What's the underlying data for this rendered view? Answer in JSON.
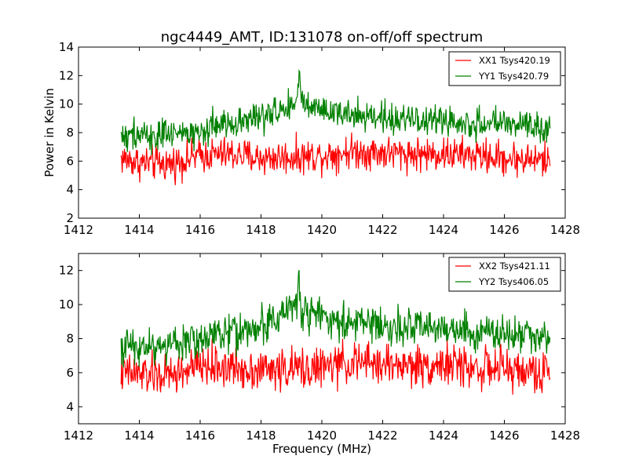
{
  "chart_data": [
    {
      "type": "line",
      "title": "ngc4449_AMT, ID:131078 on-off/off spectrum",
      "xlabel": "",
      "ylabel": "Power in Kelvin",
      "xlim": [
        1412,
        1428
      ],
      "ylim": [
        2,
        14
      ],
      "xticks": [
        1412,
        1414,
        1416,
        1418,
        1420,
        1422,
        1424,
        1426,
        1428
      ],
      "yticks": [
        2,
        4,
        6,
        8,
        10,
        12,
        14
      ],
      "grid": false,
      "legend_position": "top-right",
      "x_range": [
        1413.4,
        1427.5
      ],
      "series": [
        {
          "name": "XX1 Tsys420.19",
          "color": "#ff0000",
          "anchors": [
            [
              1413.4,
              6.2
            ],
            [
              1414.0,
              5.9
            ],
            [
              1415.0,
              5.8
            ],
            [
              1416.0,
              6.4
            ],
            [
              1417.0,
              6.5
            ],
            [
              1418.0,
              6.2
            ],
            [
              1419.0,
              6.3
            ],
            [
              1420.0,
              6.4
            ],
            [
              1421.0,
              6.7
            ],
            [
              1422.0,
              6.6
            ],
            [
              1423.0,
              6.5
            ],
            [
              1424.0,
              6.5
            ],
            [
              1425.0,
              6.4
            ],
            [
              1426.0,
              6.2
            ],
            [
              1427.0,
              6.1
            ],
            [
              1427.5,
              6.0
            ]
          ],
          "noise": 1.0,
          "peak": null
        },
        {
          "name": "YY1 Tsys420.79",
          "color": "#008000",
          "anchors": [
            [
              1413.4,
              7.8
            ],
            [
              1414.0,
              7.9
            ],
            [
              1415.0,
              7.7
            ],
            [
              1416.0,
              8.2
            ],
            [
              1417.0,
              8.8
            ],
            [
              1418.0,
              9.0
            ],
            [
              1418.6,
              9.6
            ],
            [
              1419.0,
              10.0
            ],
            [
              1419.5,
              9.8
            ],
            [
              1420.0,
              9.4
            ],
            [
              1421.0,
              9.2
            ],
            [
              1422.0,
              9.0
            ],
            [
              1423.0,
              8.9
            ],
            [
              1424.0,
              8.8
            ],
            [
              1425.0,
              8.6
            ],
            [
              1426.0,
              8.6
            ],
            [
              1427.0,
              8.5
            ],
            [
              1427.5,
              8.3
            ]
          ],
          "noise": 0.9,
          "peak": [
            1419.25,
            12.7
          ]
        }
      ]
    },
    {
      "type": "line",
      "title": "",
      "xlabel": "Frequency (MHz)",
      "ylabel": "",
      "xlim": [
        1412,
        1428
      ],
      "ylim": [
        3,
        13
      ],
      "xticks": [
        1412,
        1414,
        1416,
        1418,
        1420,
        1422,
        1424,
        1426,
        1428
      ],
      "yticks": [
        4,
        6,
        8,
        10,
        12
      ],
      "grid": false,
      "legend_position": "top-right",
      "x_range": [
        1413.4,
        1427.5
      ],
      "series": [
        {
          "name": "XX2 Tsys421.11",
          "color": "#ff0000",
          "anchors": [
            [
              1413.4,
              6.0
            ],
            [
              1414.0,
              5.9
            ],
            [
              1415.0,
              5.8
            ],
            [
              1416.0,
              6.4
            ],
            [
              1417.0,
              6.3
            ],
            [
              1418.0,
              6.2
            ],
            [
              1419.0,
              6.2
            ],
            [
              1420.0,
              6.3
            ],
            [
              1421.0,
              6.6
            ],
            [
              1422.0,
              6.5
            ],
            [
              1423.0,
              6.4
            ],
            [
              1424.0,
              6.5
            ],
            [
              1425.0,
              6.3
            ],
            [
              1426.0,
              6.2
            ],
            [
              1427.0,
              6.0
            ],
            [
              1427.5,
              5.9
            ]
          ],
          "noise": 1.0,
          "peak": null
        },
        {
          "name": "YY2 Tsys406.05",
          "color": "#008000",
          "anchors": [
            [
              1413.4,
              7.5
            ],
            [
              1414.0,
              7.6
            ],
            [
              1415.0,
              7.6
            ],
            [
              1416.0,
              8.0
            ],
            [
              1417.0,
              8.4
            ],
            [
              1418.0,
              8.7
            ],
            [
              1418.6,
              9.3
            ],
            [
              1419.0,
              9.8
            ],
            [
              1419.5,
              9.6
            ],
            [
              1420.0,
              9.2
            ],
            [
              1421.0,
              8.9
            ],
            [
              1422.0,
              8.8
            ],
            [
              1423.0,
              8.6
            ],
            [
              1424.0,
              8.5
            ],
            [
              1425.0,
              8.3
            ],
            [
              1426.0,
              8.3
            ],
            [
              1427.0,
              8.2
            ],
            [
              1427.5,
              8.0
            ]
          ],
          "noise": 0.9,
          "peak": [
            1419.25,
            12.3
          ]
        }
      ]
    }
  ]
}
